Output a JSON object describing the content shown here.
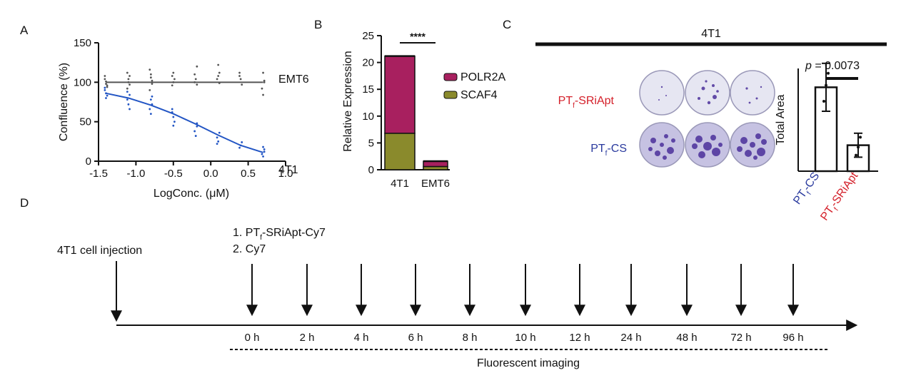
{
  "panels": {
    "a": "A",
    "b": "B",
    "c": "C",
    "d": "D"
  },
  "chart_data": [
    {
      "panel": "A",
      "type": "scatter",
      "xlabel": "LogConc. (μM)",
      "ylabel": "Confluence (%)",
      "xlim": [
        -1.5,
        1.0
      ],
      "ylim": [
        0,
        150
      ],
      "x_ticks": [
        "-1.5",
        "-1.0",
        "-0.5",
        "0.0",
        "0.5",
        "1.0"
      ],
      "y_ticks": [
        "0",
        "50",
        "100",
        "150"
      ],
      "x_levels": [
        -1.4,
        -1.1,
        -0.8,
        -0.5,
        -0.2,
        0.1,
        0.4,
        0.7
      ],
      "series": [
        {
          "name": "EMT6",
          "color": "#555555",
          "fit": [
            [
              -1.4,
              100
            ],
            [
              0.7,
              100
            ]
          ],
          "points": [
            [
              -1.4,
              104
            ],
            [
              -1.4,
              98
            ],
            [
              -1.4,
              94
            ],
            [
              -1.4,
              108
            ],
            [
              -1.4,
              101
            ],
            [
              -1.4,
              96
            ],
            [
              -1.1,
              112
            ],
            [
              -1.1,
              104
            ],
            [
              -1.1,
              97
            ],
            [
              -1.1,
              92
            ],
            [
              -1.1,
              100
            ],
            [
              -1.1,
              108
            ],
            [
              -0.8,
              116
            ],
            [
              -0.8,
              106
            ],
            [
              -0.8,
              98
            ],
            [
              -0.8,
              90
            ],
            [
              -0.8,
              110
            ],
            [
              -0.8,
              102
            ],
            [
              -0.5,
              108
            ],
            [
              -0.5,
              100
            ],
            [
              -0.5,
              104
            ],
            [
              -0.5,
              96
            ],
            [
              -0.5,
              112
            ],
            [
              -0.2,
              120
            ],
            [
              -0.2,
              110
            ],
            [
              -0.2,
              104
            ],
            [
              -0.2,
              97
            ],
            [
              -0.2,
              100
            ],
            [
              0.1,
              122
            ],
            [
              0.1,
              112
            ],
            [
              0.1,
              104
            ],
            [
              0.1,
              108
            ],
            [
              0.1,
              99
            ],
            [
              0.4,
              112
            ],
            [
              0.4,
              104
            ],
            [
              0.4,
              97
            ],
            [
              0.4,
              108
            ],
            [
              0.7,
              112
            ],
            [
              0.7,
              102
            ],
            [
              0.7,
              92
            ],
            [
              0.7,
              84
            ],
            [
              0.7,
              100
            ]
          ]
        },
        {
          "name": "4T1",
          "color": "#2255c4",
          "fit": [
            [
              -1.4,
              86
            ],
            [
              -1.1,
              80
            ],
            [
              -0.8,
              71
            ],
            [
              -0.5,
              60
            ],
            [
              -0.2,
              47
            ],
            [
              0.1,
              33
            ],
            [
              0.4,
              20
            ],
            [
              0.7,
              11
            ]
          ],
          "points": [
            [
              -1.4,
              90
            ],
            [
              -1.4,
              86
            ],
            [
              -1.4,
              83
            ],
            [
              -1.4,
              93
            ],
            [
              -1.4,
              80
            ],
            [
              -1.1,
              84
            ],
            [
              -1.1,
              78
            ],
            [
              -1.1,
              72
            ],
            [
              -1.1,
              66
            ],
            [
              -1.1,
              88
            ],
            [
              -0.8,
              78
            ],
            [
              -0.8,
              72
            ],
            [
              -0.8,
              66
            ],
            [
              -0.8,
              60
            ],
            [
              -0.8,
              82
            ],
            [
              -0.5,
              62
            ],
            [
              -0.5,
              56
            ],
            [
              -0.5,
              50
            ],
            [
              -0.5,
              66
            ],
            [
              -0.5,
              45
            ],
            [
              -0.2,
              44
            ],
            [
              -0.2,
              38
            ],
            [
              -0.2,
              32
            ],
            [
              -0.2,
              48
            ],
            [
              0.1,
              30
            ],
            [
              0.1,
              25
            ],
            [
              0.1,
              36
            ],
            [
              0.1,
              22
            ],
            [
              0.4,
              20
            ],
            [
              0.4,
              24
            ],
            [
              0.4,
              17
            ],
            [
              0.7,
              18
            ],
            [
              0.7,
              12
            ],
            [
              0.7,
              9
            ],
            [
              0.7,
              6
            ],
            [
              0.7,
              15
            ]
          ]
        }
      ]
    },
    {
      "panel": "B",
      "type": "bar",
      "stacked": true,
      "ylabel": "Relative Expression",
      "ylim": [
        0,
        25
      ],
      "y_ticks": [
        "0",
        "5",
        "10",
        "15",
        "20",
        "25"
      ],
      "categories": [
        "4T1",
        "EMT6"
      ],
      "series": [
        {
          "name": "SCAF4",
          "color": "#8a8a2c",
          "values": [
            6.8,
            0.6
          ]
        },
        {
          "name": "POLR2A",
          "color": "#a8205f",
          "values": [
            14.4,
            1.0
          ]
        }
      ],
      "significance": "****"
    },
    {
      "panel": "C",
      "type": "bar",
      "ylabel": "Total Area",
      "categories": [
        "PT_f-CS",
        "PT_f-SRiApt"
      ],
      "values": [
        0.84,
        0.26
      ],
      "errors": [
        0.24,
        0.12
      ],
      "points": [
        [
          0.7,
          0.86,
          0.98
        ],
        [
          0.16,
          0.24,
          0.34
        ]
      ],
      "annotation": "p = 0.0073"
    }
  ],
  "panel_c": {
    "group_title": "4T1",
    "row_label_1": {
      "main": "PT",
      "sub": "f",
      "rest": "-SRiApt",
      "color": "#d4202a"
    },
    "row_label_2": {
      "main": "PT",
      "sub": "f",
      "rest": "-CS",
      "color": "#2a3a9e"
    },
    "x_label_1": {
      "main": "PT",
      "sub": "f",
      "rest": "-CS",
      "color": "#2a3a9e"
    },
    "x_label_2": {
      "main": "PT",
      "sub": "f",
      "rest": "-SRiApt",
      "color": "#d4202a"
    },
    "p_prefix": "p",
    "p_rest": " = 0.0073",
    "ylabel": "Total Area"
  },
  "panel_d": {
    "injection_label": "4T1 cell injection",
    "treatment_1_prefix": "1. PT",
    "treatment_1_sub": "f",
    "treatment_1_rest": "-SRiApt-Cy7",
    "treatment_2": "2. Cy7",
    "timepoints": [
      "0 h",
      "2 h",
      "4 h",
      "6 h",
      "8 h",
      "10 h",
      "12 h",
      "24 h",
      "48 h",
      "72 h",
      "96 h"
    ],
    "imaging_label": "Fluorescent imaging"
  }
}
